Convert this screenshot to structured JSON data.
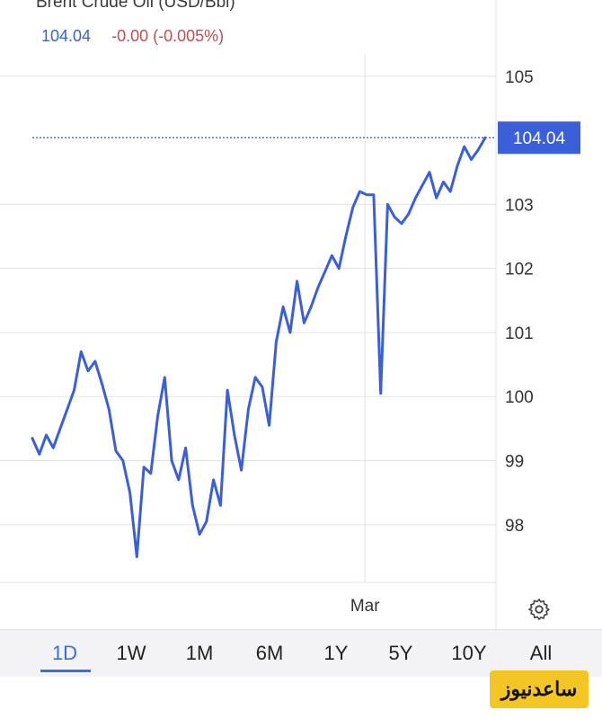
{
  "header": {
    "title": "Brent Crude Oil (USD/Bbl)",
    "price": "104.04",
    "change": "-0.00 (-0.005%)"
  },
  "colors": {
    "line": "#3b5fd8",
    "price_tag": "#3b5fd8",
    "grid": "#e3e3e3",
    "change_negative": "#c0504d",
    "active_tab": "#3b6fd8",
    "logo_bg": "#f3c623"
  },
  "chart_data": {
    "type": "line",
    "title": "Brent Crude Oil (USD/Bbl)",
    "xlabel": "",
    "ylabel": "",
    "ylim": [
      97.1,
      105.6
    ],
    "x_tick_labels": [
      "Mar"
    ],
    "x_ticks_at_index": [
      48
    ],
    "y_ticks": [
      98,
      99,
      100,
      101,
      102,
      103,
      104.04,
      105
    ],
    "y_tick_labels": [
      "98",
      "99",
      "100",
      "101",
      "102",
      "103",
      "104.04",
      "105"
    ],
    "last_price_label": "104.04",
    "grid": true,
    "series": [
      {
        "values": [
          99.35,
          99.1,
          99.4,
          99.2,
          99.5,
          99.8,
          100.1,
          100.7,
          100.4,
          100.55,
          100.2,
          99.8,
          99.15,
          99.0,
          98.5,
          97.5,
          98.9,
          98.8,
          99.7,
          100.3,
          99.0,
          98.7,
          99.2,
          98.3,
          97.85,
          98.05,
          98.7,
          98.3,
          100.1,
          99.4,
          98.85,
          99.8,
          100.3,
          100.15,
          99.55,
          100.85,
          101.4,
          101.0,
          101.8,
          101.15,
          101.4,
          101.7,
          101.95,
          102.2,
          102.0,
          102.5,
          102.95,
          103.2,
          103.15,
          103.15,
          100.05,
          103.0,
          102.8,
          102.7,
          102.85,
          103.1,
          103.3,
          103.5,
          103.1,
          103.35,
          103.2,
          103.6,
          103.9,
          103.7,
          103.85,
          104.04
        ],
        "x_ticks_at_index_note": ""
      }
    ]
  },
  "range_tabs": [
    {
      "label": "1D",
      "active": true
    },
    {
      "label": "1W",
      "active": false
    },
    {
      "label": "1M",
      "active": false
    },
    {
      "label": "6M",
      "active": false
    },
    {
      "label": "1Y",
      "active": false
    },
    {
      "label": "5Y",
      "active": false
    },
    {
      "label": "10Y",
      "active": false
    },
    {
      "label": "All",
      "active": false
    }
  ],
  "settings_icon": "gear-icon",
  "watermark": "ساعدنیوز"
}
